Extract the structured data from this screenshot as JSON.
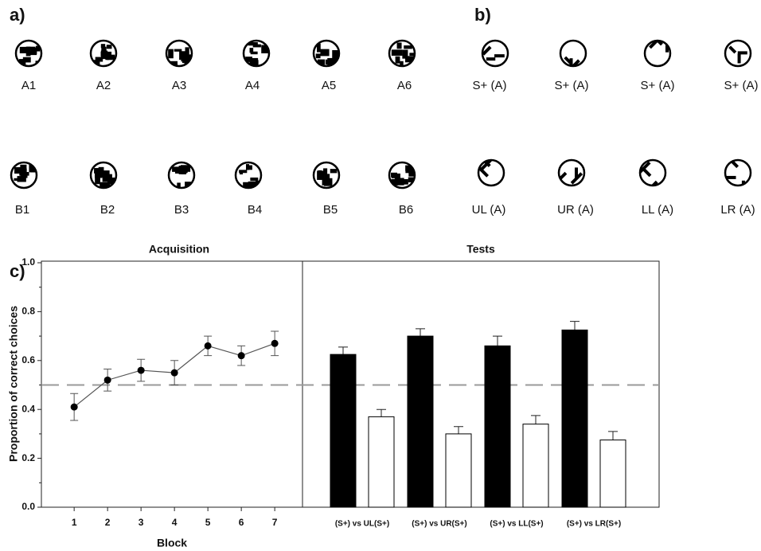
{
  "panels": {
    "a": {
      "label": "a)",
      "rows": [
        [
          "A1",
          "A2",
          "A3",
          "A4",
          "A5",
          "A6"
        ],
        [
          "B1",
          "B2",
          "B3",
          "B4",
          "B5",
          "B6"
        ]
      ]
    },
    "b": {
      "label": "b)",
      "rows": [
        [
          "S+ (A)",
          "S+ (A)",
          "S+ (A)",
          "S+ (A)"
        ],
        [
          "UL (A)",
          "UR (A)",
          "LL (A)",
          "LR (A)"
        ]
      ]
    }
  },
  "chart_data": [
    {
      "type": "line",
      "panel_label": "c)",
      "title": "Acquisition",
      "x_label": "Block",
      "y_label": "Proportion of correct choices",
      "x": [
        1,
        2,
        3,
        4,
        5,
        6,
        7
      ],
      "values": [
        0.41,
        0.52,
        0.56,
        0.55,
        0.66,
        0.62,
        0.67
      ],
      "errors": [
        0.055,
        0.045,
        0.045,
        0.05,
        0.04,
        0.04,
        0.05
      ],
      "color": "#000000",
      "xlim": [
        0.02,
        7.83
      ],
      "xticks": [
        1,
        2,
        3,
        4,
        5,
        6,
        7
      ],
      "ylim": [
        0,
        1
      ],
      "yticks": [
        {
          "value": 0,
          "label": "0.0"
        },
        0.2,
        0.4,
        0.6,
        0.8,
        {
          "value": 1,
          "label": "1.0"
        }
      ],
      "reference_line": 0.5
    },
    {
      "type": "bar",
      "title": "Tests",
      "categories": [
        "(S+) vs UL(S+)",
        "(S+) vs UR(S+)",
        "(S+) vs LL(S+)",
        "(S+) vs LR(S+)"
      ],
      "series": [
        {
          "color": "#000000",
          "values": [
            0.625,
            0.7,
            0.66,
            0.725
          ],
          "errors": [
            0.03,
            0.03,
            0.04,
            0.035
          ]
        },
        {
          "color": "#ffffff",
          "values": [
            0.37,
            0.3,
            0.34,
            0.275
          ],
          "errors": [
            0.03,
            0.03,
            0.035,
            0.035
          ]
        }
      ],
      "ylim": [
        0,
        1
      ]
    }
  ]
}
